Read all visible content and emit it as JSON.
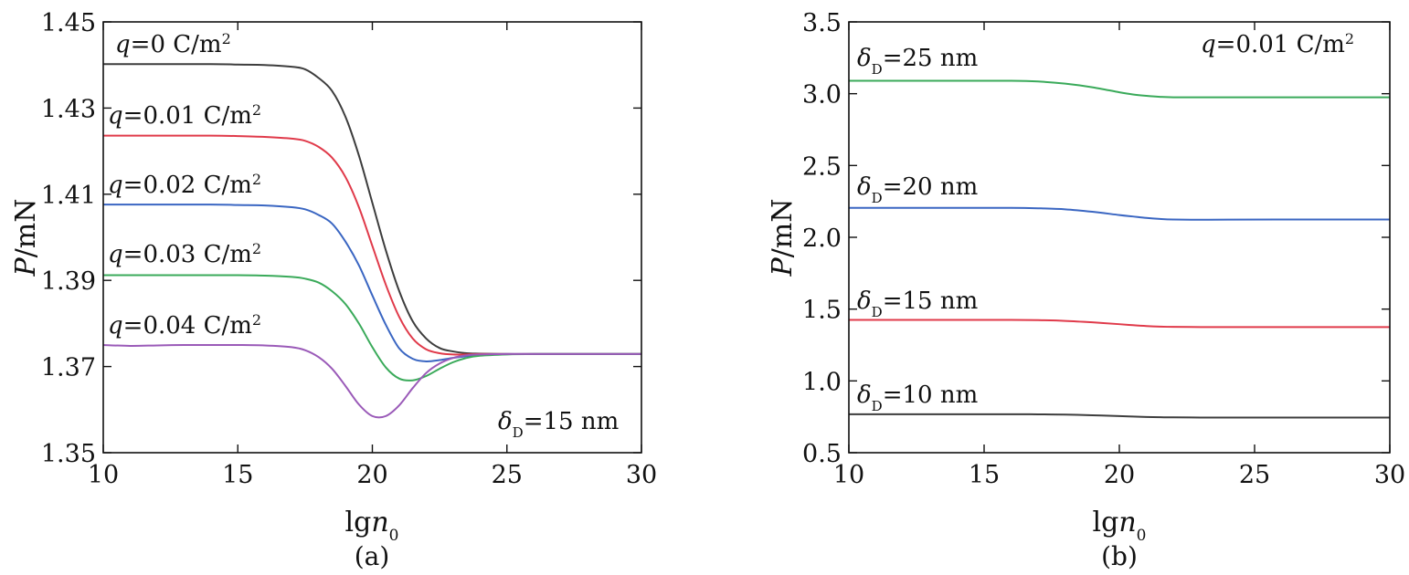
{
  "chart_data": [
    {
      "panel": "(a)",
      "type": "line",
      "xlabel_prefix": "lg",
      "xlabel_var": "n",
      "xlabel_sub": "0",
      "ylabel_var": "P",
      "ylabel_unit": "/mN",
      "xlim": [
        10,
        30
      ],
      "ylim": [
        1.35,
        1.45
      ],
      "xticks": [
        10,
        15,
        20,
        25,
        30
      ],
      "yticks": [
        1.35,
        1.37,
        1.39,
        1.41,
        1.43,
        1.45
      ],
      "ytick_labels": [
        "1.35",
        "1.37",
        "1.39",
        "1.41",
        "1.43",
        "1.45"
      ],
      "annotation": {
        "var": "δ",
        "sub": "D",
        "text": "=15 nm"
      },
      "series": [
        {
          "var": "q",
          "label_text": "=0 C/m",
          "sup": "2",
          "color": "#3d3d3d",
          "x": [
            10,
            12,
            14,
            15,
            16,
            17,
            17.5,
            18,
            18.5,
            19,
            19.5,
            20,
            20.5,
            21,
            21.5,
            22,
            22.5,
            23,
            23.5,
            24,
            25,
            26,
            28,
            30
          ],
          "y": [
            1.4402,
            1.4402,
            1.4402,
            1.4401,
            1.44,
            1.4396,
            1.439,
            1.437,
            1.434,
            1.428,
            1.419,
            1.408,
            1.397,
            1.3875,
            1.3805,
            1.3765,
            1.3743,
            1.3735,
            1.3731,
            1.373,
            1.3729,
            1.3729,
            1.3729,
            1.3729
          ]
        },
        {
          "var": "q",
          "label_text": "=0.01 C/m",
          "sup": "2",
          "color": "#e03a4a",
          "x": [
            10,
            12,
            14,
            15,
            16,
            17,
            17.5,
            18,
            18.5,
            19,
            19.5,
            20,
            20.5,
            21,
            21.5,
            22,
            22.5,
            23,
            23.5,
            24,
            25,
            26,
            28,
            30
          ],
          "y": [
            1.4236,
            1.4236,
            1.4236,
            1.4235,
            1.4233,
            1.4229,
            1.4224,
            1.421,
            1.4185,
            1.414,
            1.407,
            1.398,
            1.389,
            1.3815,
            1.3765,
            1.374,
            1.3731,
            1.3728,
            1.3728,
            1.3729,
            1.3729,
            1.3729,
            1.3729,
            1.3729
          ]
        },
        {
          "var": "q",
          "label_text": "=0.02 C/m",
          "sup": "2",
          "color": "#3a66c2",
          "x": [
            10,
            12,
            14,
            15,
            16,
            17,
            17.5,
            18,
            18.5,
            19,
            19.5,
            20,
            20.5,
            21,
            21.5,
            22,
            22.5,
            23,
            23.5,
            24,
            25,
            26,
            28,
            30
          ],
          "y": [
            1.4076,
            1.4076,
            1.4076,
            1.4075,
            1.4074,
            1.407,
            1.4065,
            1.4052,
            1.4032,
            1.399,
            1.3935,
            1.3865,
            1.3797,
            1.3742,
            1.3718,
            1.3712,
            1.3715,
            1.372,
            1.3724,
            1.3727,
            1.3729,
            1.3729,
            1.3729,
            1.3729
          ]
        },
        {
          "var": "q",
          "label_text": "=0.03 C/m",
          "sup": "2",
          "color": "#3aaa5a",
          "x": [
            10,
            12,
            14,
            15,
            16,
            17,
            17.5,
            18,
            18.5,
            19,
            19.5,
            20,
            20.5,
            21,
            21.5,
            22,
            22.5,
            23,
            23.5,
            24,
            25,
            26,
            28,
            30
          ],
          "y": [
            1.3912,
            1.3912,
            1.3912,
            1.3912,
            1.3911,
            1.3908,
            1.3904,
            1.3895,
            1.3875,
            1.3845,
            1.38,
            1.3745,
            1.3698,
            1.3672,
            1.3668,
            1.3678,
            1.3695,
            1.371,
            1.372,
            1.3725,
            1.3728,
            1.3729,
            1.3729,
            1.3729
          ]
        },
        {
          "var": "q",
          "label_text": "=0.04 C/m",
          "sup": "2",
          "color": "#9a5ab8",
          "x": [
            10,
            11,
            12,
            13,
            14,
            15,
            16,
            17,
            17.5,
            18,
            18.5,
            19,
            19.5,
            20,
            20.5,
            21,
            21.5,
            22,
            22.5,
            23,
            23.5,
            24,
            25,
            26,
            28,
            30
          ],
          "y": [
            1.375,
            1.3748,
            1.3749,
            1.375,
            1.375,
            1.375,
            1.3749,
            1.3745,
            1.3738,
            1.3722,
            1.3695,
            1.3655,
            1.3612,
            1.3585,
            1.3585,
            1.361,
            1.365,
            1.3685,
            1.3707,
            1.372,
            1.3726,
            1.3728,
            1.3729,
            1.3729,
            1.3729,
            1.3729
          ]
        }
      ]
    },
    {
      "panel": "(b)",
      "type": "line",
      "xlabel_prefix": "lg",
      "xlabel_var": "n",
      "xlabel_sub": "0",
      "ylabel_var": "P",
      "ylabel_unit": "/mN",
      "xlim": [
        10,
        30
      ],
      "ylim": [
        0.5,
        3.5
      ],
      "xticks": [
        10,
        15,
        20,
        25,
        30
      ],
      "yticks": [
        0.5,
        1.0,
        1.5,
        2.0,
        2.5,
        3.0,
        3.5
      ],
      "ytick_labels": [
        "0.5",
        "1.0",
        "1.5",
        "2.0",
        "2.5",
        "3.0",
        "3.5"
      ],
      "annotation": {
        "var": "q",
        "text": "=0.01 C/m",
        "sup": "2"
      },
      "series": [
        {
          "var": "δ",
          "sub": "D",
          "label_text": "=25 nm",
          "color": "#3aaa5a",
          "x": [
            10,
            14,
            16,
            17,
            18,
            19,
            20,
            20.5,
            21,
            21.5,
            22,
            23,
            24,
            26,
            30
          ],
          "y": [
            3.09,
            3.09,
            3.09,
            3.085,
            3.07,
            3.045,
            3.01,
            2.995,
            2.985,
            2.978,
            2.975,
            2.975,
            2.975,
            2.975,
            2.975
          ]
        },
        {
          "var": "δ",
          "sub": "D",
          "label_text": "=20 nm",
          "color": "#3a66c2",
          "x": [
            10,
            14,
            16,
            17,
            18,
            19,
            20,
            20.5,
            21,
            21.5,
            22,
            23,
            24,
            26,
            30
          ],
          "y": [
            2.205,
            2.205,
            2.205,
            2.202,
            2.195,
            2.178,
            2.155,
            2.145,
            2.135,
            2.128,
            2.124,
            2.122,
            2.123,
            2.124,
            2.124
          ]
        },
        {
          "var": "δ",
          "sub": "D",
          "label_text": "=15 nm",
          "color": "#e03a4a",
          "x": [
            10,
            14,
            16,
            17,
            18,
            19,
            20,
            20.5,
            21,
            21.5,
            22,
            23,
            24,
            26,
            30
          ],
          "y": [
            1.425,
            1.425,
            1.425,
            1.423,
            1.418,
            1.408,
            1.395,
            1.388,
            1.382,
            1.378,
            1.376,
            1.375,
            1.375,
            1.375,
            1.375
          ]
        },
        {
          "var": "δ",
          "sub": "D",
          "label_text": "=10 nm",
          "color": "#3d3d3d",
          "x": [
            10,
            14,
            16,
            17,
            18,
            19,
            20,
            20.5,
            21,
            21.5,
            22,
            23,
            24,
            26,
            30
          ],
          "y": [
            0.768,
            0.768,
            0.768,
            0.767,
            0.765,
            0.761,
            0.755,
            0.752,
            0.749,
            0.747,
            0.746,
            0.745,
            0.745,
            0.745,
            0.745
          ]
        }
      ]
    }
  ]
}
